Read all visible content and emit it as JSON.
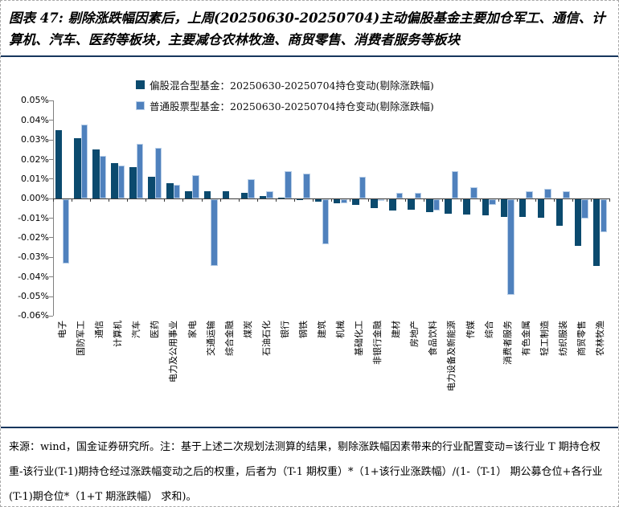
{
  "page": {
    "title": "图表 47: 剔除涨跌幅因素后，上周(20250630-20250704)主动偏股基金主要加仓军工、通信、计算机、汽车、医药等板块，主要减仓农林牧渔、商贸零售、消费者服务等板块",
    "source_note": "来源：wind，国金证券研究所。注：基于上述二次规划法测算的结果，剔除涨跌幅因素带来的行业配置变动=该行业 T 期持仓权重-该行业(T-1)期持仓经过涨跌幅变动之后的权重，后者为（T-1 期权重）*（1+该行业涨跌幅）/(1-（T-1） 期公募仓位+各行业(T-1)期仓位*（1+T 期涨跌幅） 求和)。"
  },
  "colors": {
    "rule": "#17365d",
    "dark_series": "#0b4a6e",
    "light_series": "#4f81bd",
    "light_series_edge": "#b9cfe8",
    "axis": "#808080",
    "zero_axis": "#3a3a3a"
  },
  "chart_data": {
    "type": "bar",
    "unit": "%",
    "grid": false,
    "legend_position": "top",
    "ylim": [
      -0.06,
      0.05
    ],
    "y_ticks": [
      {
        "value": 0.05,
        "label": "0.05%"
      },
      {
        "value": 0.04,
        "label": "0.04%"
      },
      {
        "value": 0.03,
        "label": "0.03%"
      },
      {
        "value": 0.02,
        "label": "0.02%"
      },
      {
        "value": 0.01,
        "label": "0.01%"
      },
      {
        "value": 0.0,
        "label": "0.00%"
      },
      {
        "value": -0.01,
        "label": "-0.01%"
      },
      {
        "value": -0.02,
        "label": "-0.02%"
      },
      {
        "value": -0.03,
        "label": "-0.03%"
      },
      {
        "value": -0.04,
        "label": "-0.04%"
      },
      {
        "value": -0.05,
        "label": "-0.05%"
      },
      {
        "value": -0.06,
        "label": "-0.06%"
      }
    ],
    "categories": [
      "电子",
      "国防军工",
      "通信",
      "计算机",
      "汽车",
      "医药",
      "电力及公用事业",
      "家电",
      "交通运输",
      "综合金融",
      "煤炭",
      "石油石化",
      "银行",
      "钢铁",
      "建筑",
      "机械",
      "基础化工",
      "非银行金融",
      "建材",
      "房地产",
      "食品饮料",
      "电力设备及新能源",
      "传媒",
      "综合",
      "消费者服务",
      "有色金属",
      "轻工制造",
      "纺织服装",
      "商贸零售",
      "农林牧渔"
    ],
    "series": [
      {
        "name": "偏股混合型基金：20250630-20250704持仓变动(剔除涨跌幅)",
        "color": "#0b4a6e",
        "values": [
          0.035,
          0.031,
          0.025,
          0.018,
          0.016,
          0.011,
          0.008,
          0.004,
          0.004,
          0.004,
          0.003,
          0.0015,
          0.0005,
          -0.0005,
          -0.0015,
          -0.002,
          -0.003,
          -0.0045,
          -0.006,
          -0.0055,
          -0.0065,
          -0.0075,
          -0.008,
          -0.0085,
          -0.009,
          -0.009,
          -0.0095,
          -0.0135,
          -0.024,
          -0.034
        ]
      },
      {
        "name": "普通股票型基金：20250630-20250704持仓变动(剔除涨跌幅)",
        "color": "#4f81bd",
        "values": [
          -0.033,
          0.038,
          0.022,
          0.017,
          0.028,
          0.026,
          0.007,
          0.012,
          -0.034,
          0.0,
          0.01,
          0.004,
          0.014,
          0.013,
          -0.023,
          -0.002,
          0.011,
          -0.001,
          0.003,
          0.003,
          -0.006,
          0.014,
          0.006,
          -0.003,
          -0.049,
          0.004,
          0.005,
          0.004,
          -0.01,
          -0.017
        ]
      }
    ]
  }
}
